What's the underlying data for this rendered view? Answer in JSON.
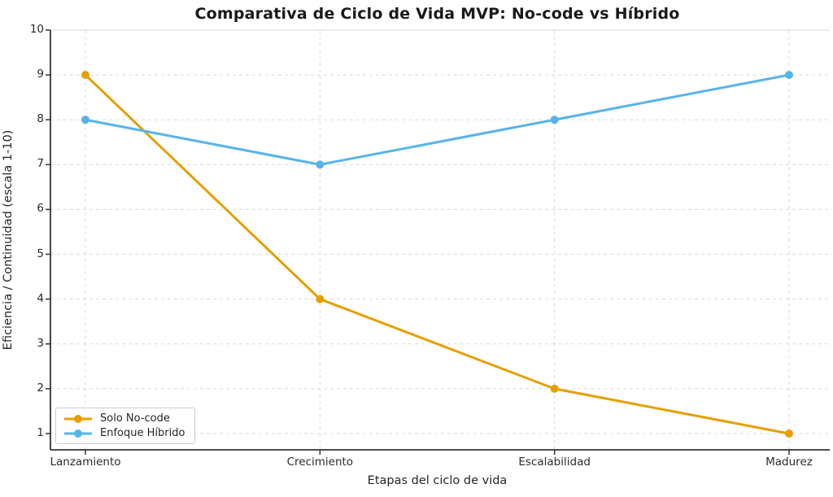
{
  "chart_data": {
    "type": "line",
    "title": "Comparativa de Ciclo de Vida MVP: No-code vs Híbrido",
    "xlabel": "Etapas del ciclo de vida",
    "ylabel": "Eficiencia / Continuidad (escala 1-10)",
    "categories": [
      "Lanzamiento",
      "Crecimiento",
      "Escalabilidad",
      "Madurez"
    ],
    "y_ticks": [
      1,
      2,
      3,
      4,
      5,
      6,
      7,
      8,
      9,
      10
    ],
    "ylim": [
      0.6,
      10
    ],
    "grid": "dashed-both-axes",
    "legend_position": "lower-left",
    "series": [
      {
        "name": "Solo No-code",
        "color": "#E69F00",
        "values": [
          9,
          4,
          2,
          1
        ]
      },
      {
        "name": "Enfoque Híbrido",
        "color": "#56B4E9",
        "values": [
          8,
          7,
          8,
          9
        ]
      }
    ],
    "colors": {
      "grid": "#d9d9d9",
      "spine_dark": "#333333",
      "spine_light": "#d9d9d9",
      "text": "#262626",
      "background": "#ffffff"
    }
  }
}
